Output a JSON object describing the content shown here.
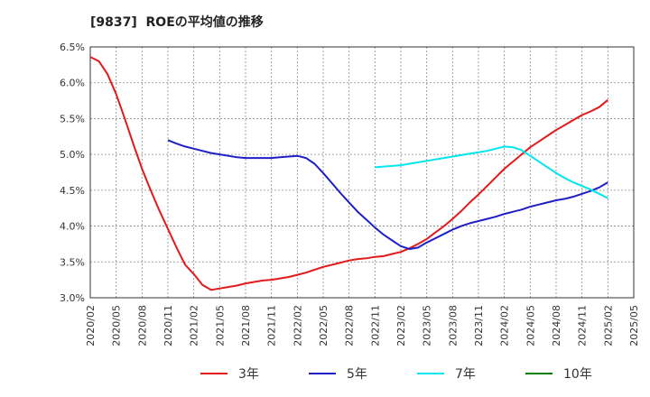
{
  "chart_data": {
    "type": "line",
    "title": "[9837]  ROEの平均値の推移",
    "xlabel": "",
    "ylabel": "",
    "ylim": [
      3.0,
      6.5
    ],
    "y_ticks": [
      "3.0%",
      "3.5%",
      "4.0%",
      "4.5%",
      "5.0%",
      "5.5%",
      "6.0%",
      "6.5%"
    ],
    "x_range": [
      "2020/02",
      "2025/05"
    ],
    "x_ticks": [
      "2020/02",
      "2020/05",
      "2020/08",
      "2020/11",
      "2021/02",
      "2021/05",
      "2021/08",
      "2021/11",
      "2022/02",
      "2022/05",
      "2022/08",
      "2022/11",
      "2023/02",
      "2023/05",
      "2023/08",
      "2023/11",
      "2024/02",
      "2024/05",
      "2024/08",
      "2024/11",
      "2025/02",
      "2025/05"
    ],
    "grid": true,
    "legend_position": "bottom",
    "series": [
      {
        "name": "3年",
        "color": "#e31a1c",
        "points": [
          [
            "2020/02",
            6.36
          ],
          [
            "2020/03",
            6.3
          ],
          [
            "2020/04",
            6.12
          ],
          [
            "2020/05",
            5.84
          ],
          [
            "2020/06",
            5.5
          ],
          [
            "2020/07",
            5.14
          ],
          [
            "2020/08",
            4.8
          ],
          [
            "2020/09",
            4.5
          ],
          [
            "2020/10",
            4.22
          ],
          [
            "2020/11",
            3.96
          ],
          [
            "2020/12",
            3.7
          ],
          [
            "2021/01",
            3.46
          ],
          [
            "2021/02",
            3.33
          ],
          [
            "2021/03",
            3.18
          ],
          [
            "2021/04",
            3.11
          ],
          [
            "2021/05",
            3.13
          ],
          [
            "2021/06",
            3.15
          ],
          [
            "2021/07",
            3.17
          ],
          [
            "2021/08",
            3.2
          ],
          [
            "2021/09",
            3.22
          ],
          [
            "2021/10",
            3.24
          ],
          [
            "2021/11",
            3.25
          ],
          [
            "2021/12",
            3.27
          ],
          [
            "2022/01",
            3.29
          ],
          [
            "2022/02",
            3.32
          ],
          [
            "2022/03",
            3.35
          ],
          [
            "2022/04",
            3.39
          ],
          [
            "2022/05",
            3.43
          ],
          [
            "2022/06",
            3.46
          ],
          [
            "2022/07",
            3.49
          ],
          [
            "2022/08",
            3.52
          ],
          [
            "2022/09",
            3.54
          ],
          [
            "2022/10",
            3.55
          ],
          [
            "2022/11",
            3.57
          ],
          [
            "2022/12",
            3.58
          ],
          [
            "2023/01",
            3.61
          ],
          [
            "2023/02",
            3.64
          ],
          [
            "2023/03",
            3.69
          ],
          [
            "2023/04",
            3.75
          ],
          [
            "2023/05",
            3.82
          ],
          [
            "2023/06",
            3.91
          ],
          [
            "2023/07",
            4.0
          ],
          [
            "2023/08",
            4.1
          ],
          [
            "2023/09",
            4.21
          ],
          [
            "2023/10",
            4.33
          ],
          [
            "2023/11",
            4.44
          ],
          [
            "2023/12",
            4.56
          ],
          [
            "2024/01",
            4.68
          ],
          [
            "2024/02",
            4.8
          ],
          [
            "2024/03",
            4.9
          ],
          [
            "2024/04",
            5.0
          ],
          [
            "2024/05",
            5.1
          ],
          [
            "2024/06",
            5.18
          ],
          [
            "2024/07",
            5.26
          ],
          [
            "2024/08",
            5.34
          ],
          [
            "2024/09",
            5.41
          ],
          [
            "2024/10",
            5.48
          ],
          [
            "2024/11",
            5.55
          ],
          [
            "2024/12",
            5.6
          ],
          [
            "2025/01",
            5.66
          ],
          [
            "2025/02",
            5.76
          ]
        ]
      },
      {
        "name": "5年",
        "color": "#1f1fc8",
        "points": [
          [
            "2020/11",
            5.2
          ],
          [
            "2020/12",
            5.15
          ],
          [
            "2021/01",
            5.11
          ],
          [
            "2021/02",
            5.08
          ],
          [
            "2021/03",
            5.05
          ],
          [
            "2021/04",
            5.02
          ],
          [
            "2021/05",
            5.0
          ],
          [
            "2021/06",
            4.98
          ],
          [
            "2021/07",
            4.96
          ],
          [
            "2021/08",
            4.95
          ],
          [
            "2021/09",
            4.95
          ],
          [
            "2021/10",
            4.95
          ],
          [
            "2021/11",
            4.95
          ],
          [
            "2021/12",
            4.96
          ],
          [
            "2022/01",
            4.97
          ],
          [
            "2022/02",
            4.98
          ],
          [
            "2022/03",
            4.95
          ],
          [
            "2022/04",
            4.87
          ],
          [
            "2022/05",
            4.74
          ],
          [
            "2022/06",
            4.6
          ],
          [
            "2022/07",
            4.46
          ],
          [
            "2022/08",
            4.33
          ],
          [
            "2022/09",
            4.2
          ],
          [
            "2022/10",
            4.09
          ],
          [
            "2022/11",
            3.98
          ],
          [
            "2022/12",
            3.88
          ],
          [
            "2023/01",
            3.8
          ],
          [
            "2023/02",
            3.72
          ],
          [
            "2023/03",
            3.68
          ],
          [
            "2023/04",
            3.7
          ],
          [
            "2023/05",
            3.77
          ],
          [
            "2023/06",
            3.83
          ],
          [
            "2023/07",
            3.89
          ],
          [
            "2023/08",
            3.95
          ],
          [
            "2023/09",
            4.0
          ],
          [
            "2023/10",
            4.04
          ],
          [
            "2023/11",
            4.07
          ],
          [
            "2023/12",
            4.1
          ],
          [
            "2024/01",
            4.13
          ],
          [
            "2024/02",
            4.17
          ],
          [
            "2024/03",
            4.2
          ],
          [
            "2024/04",
            4.23
          ],
          [
            "2024/05",
            4.27
          ],
          [
            "2024/06",
            4.3
          ],
          [
            "2024/07",
            4.33
          ],
          [
            "2024/08",
            4.36
          ],
          [
            "2024/09",
            4.38
          ],
          [
            "2024/10",
            4.41
          ],
          [
            "2024/11",
            4.45
          ],
          [
            "2024/12",
            4.49
          ],
          [
            "2025/01",
            4.54
          ],
          [
            "2025/02",
            4.61
          ]
        ]
      },
      {
        "name": "7年",
        "color": "#00e5ee",
        "points": [
          [
            "2022/11",
            4.82
          ],
          [
            "2022/12",
            4.83
          ],
          [
            "2023/01",
            4.84
          ],
          [
            "2023/02",
            4.85
          ],
          [
            "2023/03",
            4.87
          ],
          [
            "2023/04",
            4.89
          ],
          [
            "2023/05",
            4.91
          ],
          [
            "2023/06",
            4.93
          ],
          [
            "2023/07",
            4.95
          ],
          [
            "2023/08",
            4.97
          ],
          [
            "2023/09",
            4.99
          ],
          [
            "2023/10",
            5.01
          ],
          [
            "2023/11",
            5.03
          ],
          [
            "2023/12",
            5.05
          ],
          [
            "2024/01",
            5.08
          ],
          [
            "2024/02",
            5.11
          ],
          [
            "2024/03",
            5.1
          ],
          [
            "2024/04",
            5.06
          ],
          [
            "2024/05",
            4.98
          ],
          [
            "2024/06",
            4.9
          ],
          [
            "2024/07",
            4.82
          ],
          [
            "2024/08",
            4.74
          ],
          [
            "2024/09",
            4.67
          ],
          [
            "2024/10",
            4.61
          ],
          [
            "2024/11",
            4.56
          ],
          [
            "2024/12",
            4.51
          ],
          [
            "2025/01",
            4.45
          ],
          [
            "2025/02",
            4.39
          ]
        ]
      },
      {
        "name": "10年",
        "color": "#008000",
        "points": []
      }
    ]
  }
}
